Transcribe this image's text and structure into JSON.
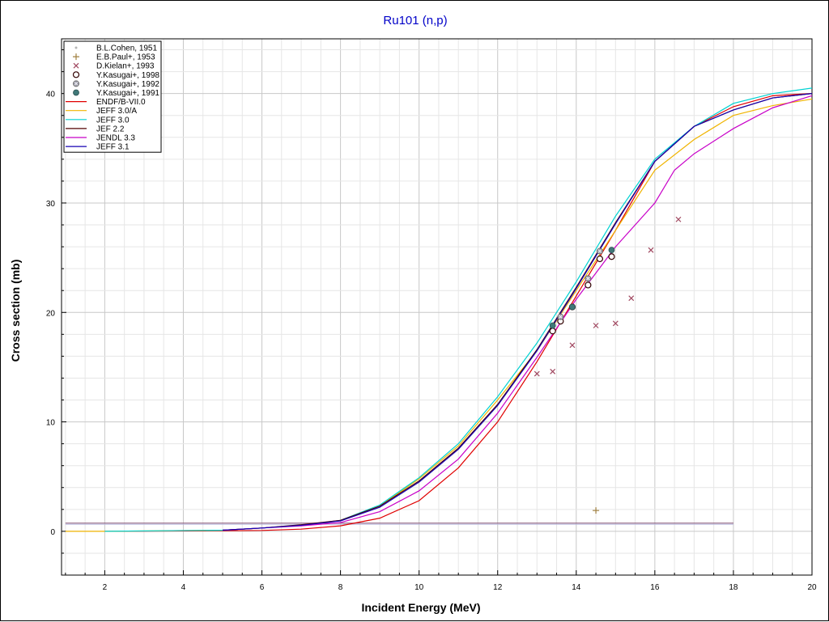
{
  "chart_data": {
    "type": "scatter",
    "title": "Ru101 (n,p)",
    "xlabel": "Incident Energy (MeV)",
    "ylabel": "Cross section (mb)",
    "xlim": [
      0.9,
      20
    ],
    "ylim": [
      -4,
      45
    ],
    "xticks": [
      2,
      4,
      6,
      8,
      10,
      12,
      14,
      16,
      18,
      20
    ],
    "yticks": [
      0,
      10,
      20,
      30,
      40
    ],
    "grid": true,
    "legend_position": "top-left",
    "series": [
      {
        "name": "B.L.Cohen, 1951",
        "kind": "points",
        "marker": "dot",
        "color": "#b4b4b4",
        "points": []
      },
      {
        "name": "E.B.Paul+, 1953",
        "kind": "points",
        "marker": "plus",
        "color": "#a08040",
        "points": [
          [
            14.5,
            1.9
          ]
        ]
      },
      {
        "name": "D.Kielan+, 1993",
        "kind": "points",
        "marker": "cross",
        "color": "#a04860",
        "points": [
          [
            13.0,
            14.4
          ],
          [
            13.4,
            14.6
          ],
          [
            13.9,
            17.0
          ],
          [
            14.5,
            18.8
          ],
          [
            15.0,
            19.0
          ],
          [
            15.4,
            21.3
          ],
          [
            15.9,
            25.7
          ],
          [
            16.6,
            28.5
          ]
        ]
      },
      {
        "name": "Y.Kasugai+, 1998",
        "kind": "points",
        "marker": "open-circle",
        "color": "#300000",
        "points": [
          [
            13.4,
            18.3
          ],
          [
            13.6,
            19.2
          ],
          [
            13.9,
            20.5
          ],
          [
            14.3,
            22.5
          ],
          [
            14.6,
            24.9
          ],
          [
            14.9,
            25.1
          ]
        ]
      },
      {
        "name": "Y.Kasugai+, 1992",
        "kind": "points",
        "marker": "hatched-circle",
        "color": "#707070",
        "points": [
          [
            13.6,
            19.6
          ],
          [
            14.3,
            23.1
          ],
          [
            14.6,
            25.6
          ]
        ]
      },
      {
        "name": "Y.Kasugai+, 1991",
        "kind": "points",
        "marker": "filled-circle",
        "color": "#407878",
        "points": [
          [
            13.4,
            18.8
          ],
          [
            13.9,
            20.5
          ],
          [
            14.9,
            25.7
          ]
        ]
      },
      {
        "name": "ENDF/B-VII.0",
        "kind": "line",
        "color": "#e00000",
        "points": [
          [
            2,
            0
          ],
          [
            5,
            0.05
          ],
          [
            6,
            0.08
          ],
          [
            7,
            0.2
          ],
          [
            8,
            0.5
          ],
          [
            9,
            1.2
          ],
          [
            10,
            2.8
          ],
          [
            11,
            5.8
          ],
          [
            12,
            10.0
          ],
          [
            13,
            15.5
          ],
          [
            14,
            21.5
          ],
          [
            15,
            27.5
          ],
          [
            16,
            33.8
          ],
          [
            17,
            37.0
          ],
          [
            18,
            38.8
          ],
          [
            19,
            39.8
          ],
          [
            20,
            40.0
          ]
        ]
      },
      {
        "name": "JEFF 3.0/A",
        "kind": "line",
        "color": "#f0b400",
        "points": [
          [
            1,
            0
          ],
          [
            2,
            0
          ],
          [
            5,
            0.1
          ],
          [
            6,
            0.3
          ],
          [
            7,
            0.55
          ],
          [
            8,
            1.0
          ],
          [
            9,
            2.3
          ],
          [
            10,
            4.8
          ],
          [
            11,
            7.8
          ],
          [
            12,
            12.0
          ],
          [
            13,
            16.5
          ],
          [
            14,
            22.0
          ],
          [
            15,
            27.5
          ],
          [
            16,
            33.0
          ],
          [
            17,
            35.8
          ],
          [
            18,
            38.0
          ],
          [
            19,
            38.9
          ],
          [
            20,
            39.5
          ]
        ]
      },
      {
        "name": "JEFF 3.0",
        "kind": "line",
        "color": "#00d2d2",
        "points": [
          [
            2,
            0
          ],
          [
            5,
            0.1
          ],
          [
            6,
            0.3
          ],
          [
            7,
            0.55
          ],
          [
            8,
            1.0
          ],
          [
            9,
            2.4
          ],
          [
            10,
            4.9
          ],
          [
            11,
            8.0
          ],
          [
            12,
            12.3
          ],
          [
            13,
            17.2
          ],
          [
            14,
            22.8
          ],
          [
            15,
            28.8
          ],
          [
            16,
            34.0
          ],
          [
            17,
            37.0
          ],
          [
            18,
            39.1
          ],
          [
            19,
            40.0
          ],
          [
            20,
            40.5
          ]
        ]
      },
      {
        "name": "JEF 2.2",
        "kind": "line",
        "color": "#500000",
        "points": [
          [
            5,
            0.1
          ],
          [
            6,
            0.3
          ],
          [
            7,
            0.6
          ],
          [
            8,
            1.0
          ],
          [
            9,
            2.3
          ],
          [
            10,
            4.6
          ],
          [
            11,
            7.6
          ],
          [
            12,
            11.6
          ],
          [
            13,
            16.6
          ],
          [
            14,
            22.3
          ],
          [
            15,
            28.2
          ],
          [
            16,
            33.8
          ],
          [
            17,
            37.0
          ],
          [
            18,
            38.5
          ],
          [
            19,
            39.6
          ],
          [
            20,
            40.0
          ]
        ]
      },
      {
        "name": "JENDL 3.3",
        "kind": "line",
        "color": "#c800c8",
        "points": [
          [
            5,
            0.1
          ],
          [
            6,
            0.3
          ],
          [
            7,
            0.5
          ],
          [
            8,
            0.8
          ],
          [
            9,
            1.8
          ],
          [
            10,
            3.7
          ],
          [
            11,
            6.6
          ],
          [
            12,
            10.8
          ],
          [
            13,
            15.9
          ],
          [
            14,
            21.2
          ],
          [
            15,
            26.0
          ],
          [
            16,
            30.0
          ],
          [
            16.5,
            33.0
          ],
          [
            17,
            34.5
          ],
          [
            18,
            36.8
          ],
          [
            19,
            38.7
          ],
          [
            20,
            39.8
          ]
        ]
      },
      {
        "name": "JEFF 3.1",
        "kind": "line",
        "color": "#1400b4",
        "points": [
          [
            5,
            0.1
          ],
          [
            6,
            0.3
          ],
          [
            7,
            0.55
          ],
          [
            8,
            0.95
          ],
          [
            9,
            2.2
          ],
          [
            10,
            4.5
          ],
          [
            11,
            7.5
          ],
          [
            12,
            11.5
          ],
          [
            13,
            16.5
          ],
          [
            14,
            22.2
          ],
          [
            15,
            28.1
          ],
          [
            16,
            33.8
          ],
          [
            17,
            37.0
          ],
          [
            18,
            38.5
          ],
          [
            19,
            39.6
          ],
          [
            20,
            40.0
          ]
        ]
      }
    ],
    "horizontal_lines": [
      {
        "color": "#8c5a78",
        "x": [
          1,
          18
        ],
        "y": 0.75
      },
      {
        "color": "#b4b4dc",
        "x": [
          1,
          18
        ],
        "y": 0.65
      }
    ]
  }
}
